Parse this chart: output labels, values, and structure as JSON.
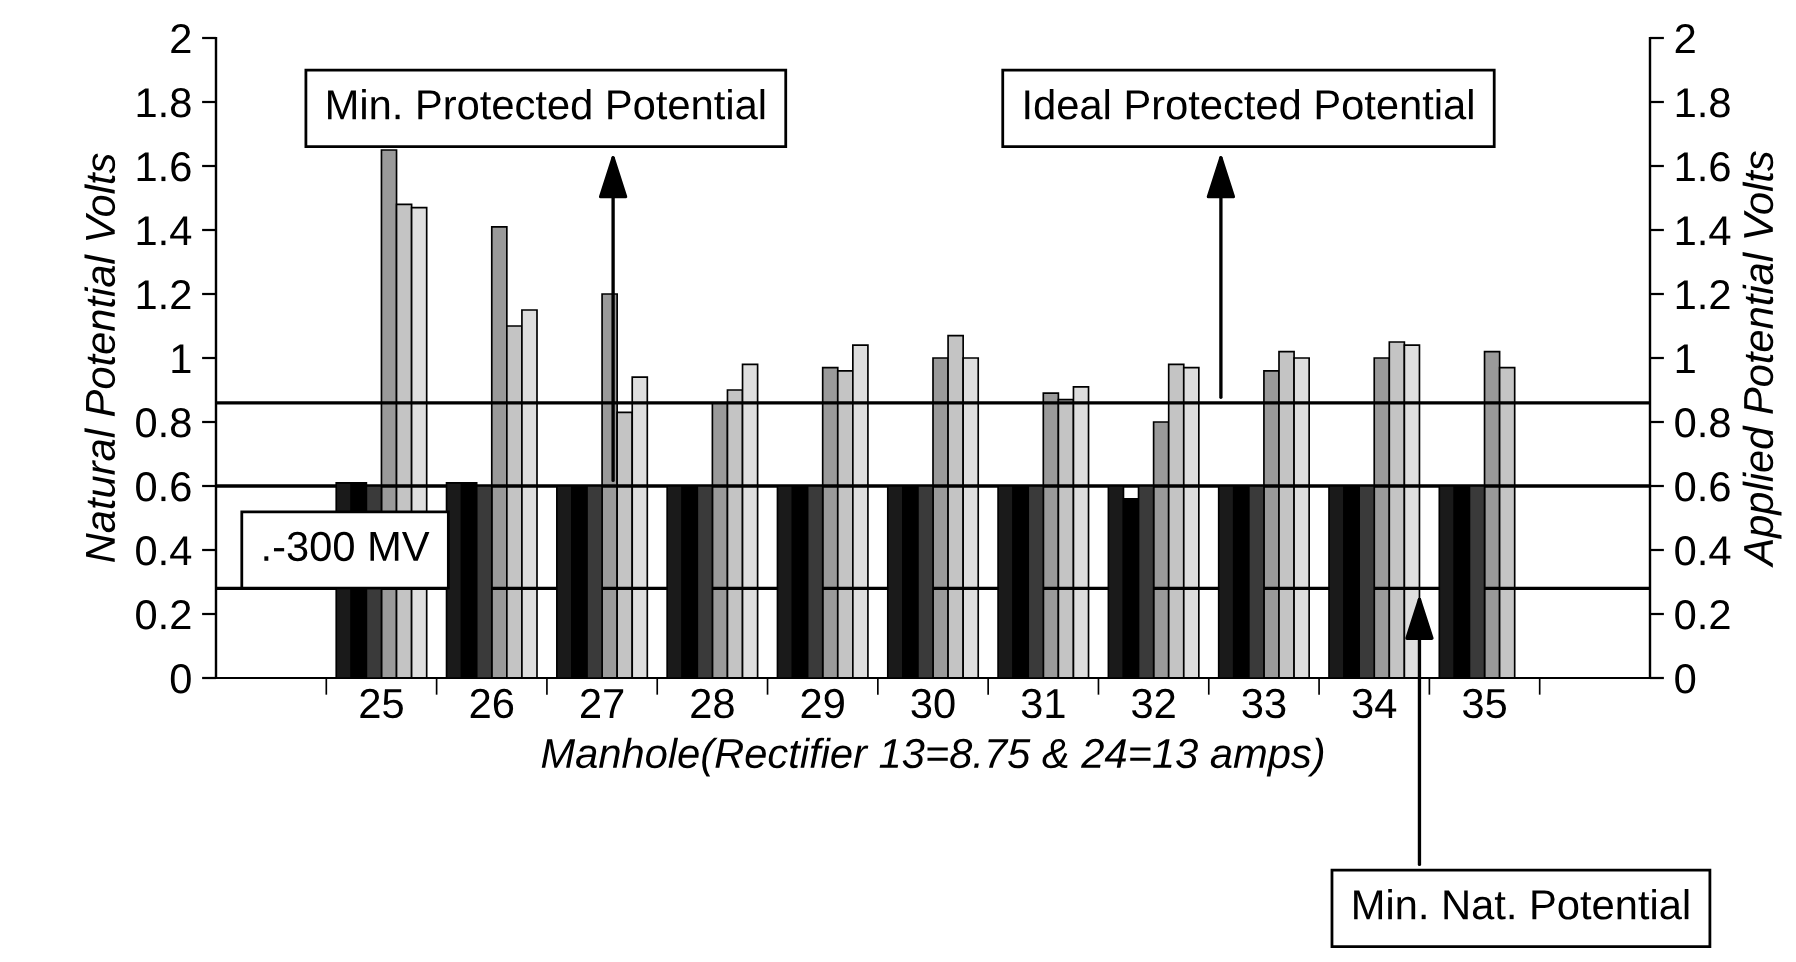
{
  "chart_data": {
    "type": "bar",
    "xlabel": "Manhole(Rectifier 13=8.75 & 24=13 amps)",
    "ylabel": "Natural Potential Volts",
    "y2label": "Applied Potential Volts",
    "categories": [
      null,
      "25",
      "26",
      "27",
      "28",
      "29",
      "30",
      "31",
      "32",
      "33",
      "34",
      "35",
      null
    ],
    "series": [
      {
        "color": "#1a1a1a",
        "values": [
          null,
          0.61,
          0.61,
          0.6,
          0.6,
          0.6,
          0.6,
          0.6,
          0.6,
          0.6,
          0.6,
          0.6,
          null
        ]
      },
      {
        "color": "#000000",
        "values": [
          null,
          0.61,
          0.61,
          0.6,
          0.6,
          0.6,
          0.6,
          0.6,
          0.56,
          0.6,
          0.6,
          0.6,
          null
        ]
      },
      {
        "color": "#3a3a3a",
        "values": [
          null,
          0.6,
          0.6,
          0.6,
          0.6,
          0.6,
          0.6,
          0.6,
          0.6,
          0.6,
          0.6,
          0.6,
          null
        ]
      },
      {
        "color": "#9a9a9a",
        "axis": "y2",
        "values": [
          null,
          1.65,
          1.41,
          1.2,
          0.86,
          0.97,
          1.0,
          0.89,
          0.8,
          0.96,
          1.0,
          1.02,
          null
        ]
      },
      {
        "color": "#c4c4c4",
        "axis": "y2",
        "values": [
          null,
          1.48,
          1.1,
          0.83,
          0.9,
          0.96,
          1.07,
          0.87,
          0.98,
          1.02,
          1.05,
          0.97,
          null
        ]
      },
      {
        "color": "#dedede",
        "axis": "y2",
        "values": [
          null,
          1.47,
          1.15,
          0.94,
          0.98,
          1.04,
          1.0,
          0.91,
          0.97,
          1.0,
          1.04,
          null,
          null
        ]
      }
    ],
    "ylim": [
      0,
      2
    ],
    "yticks": [
      0,
      0.2,
      0.4,
      0.6,
      0.8,
      1,
      1.2,
      1.4,
      1.6,
      1.8,
      2
    ],
    "y2lim": [
      0,
      2
    ],
    "y2ticks": [
      0,
      0.2,
      0.4,
      0.6,
      0.8,
      1,
      1.2,
      1.4,
      1.6,
      1.8,
      2
    ],
    "ref_lines": [
      {
        "axis": "y",
        "value": 0.6,
        "label": "Min. Protected Potential",
        "color": "#000000"
      },
      {
        "axis": "y",
        "value": 0.86,
        "label": "Ideal Protected Potential",
        "color": "#000000"
      },
      {
        "axis": "y",
        "value": 0.28,
        "label": "Min. Nat. Potential",
        "color": "#000000"
      }
    ],
    "annotations": [
      ".-300 MV"
    ]
  }
}
